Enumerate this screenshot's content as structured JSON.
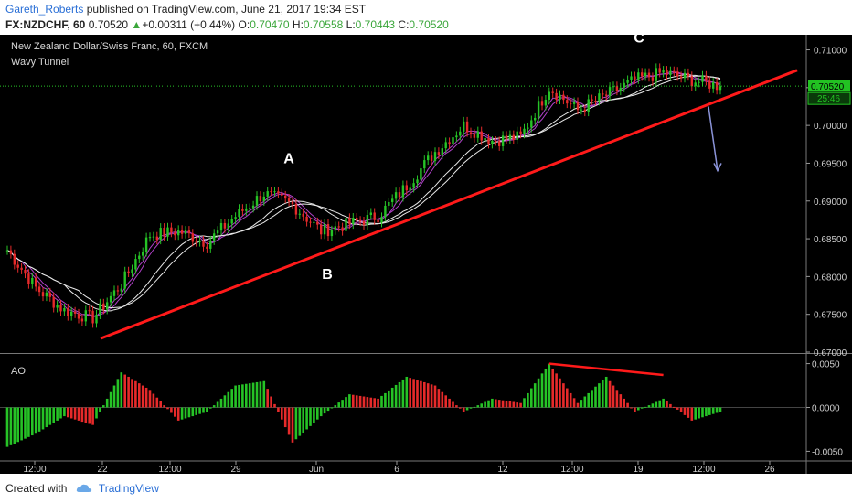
{
  "header": {
    "author": "Gareth_Roberts",
    "published": "published on TradingView.com, June 21, 2017 19:34 EST",
    "symbol": "FX:NZDCHF, 60",
    "last": "0.70520",
    "change": "+0.00311 (+0.44%)",
    "open_label": "O:",
    "open": "0.70470",
    "high_label": "H:",
    "high": "0.70558",
    "low_label": "L:",
    "low": "0.70443",
    "close_label": "C:",
    "close": "0.70520"
  },
  "footer": {
    "created_with": "Created with",
    "brand": "TradingView"
  },
  "colors": {
    "background": "#000000",
    "up": "#26c326",
    "down": "#e62a2a",
    "trend": "#ff1a1a",
    "tunnel_purple": "#b040c8",
    "tunnel_white": "#e8e8e8",
    "price_tag": "#22c222",
    "arrow": "#8a93d8"
  },
  "chart_data": [
    {
      "type": "line",
      "title": "New Zealand Dollar/Swiss Franc, 60, FXCM",
      "indicator": "Wavy Tunnel",
      "ylim": [
        0.67,
        0.712
      ],
      "y_ticks": [
        "0.71000",
        "0.70500",
        "0.70000",
        "0.69500",
        "0.69000",
        "0.68500",
        "0.68000",
        "0.67500",
        "0.67000"
      ],
      "x_ticks": [
        "12:00",
        "22",
        "12:00",
        "29",
        "Jun",
        "6",
        "12",
        "12:00",
        "19",
        "12:00",
        "26"
      ],
      "last_price_label": "0.70520",
      "countdown_label": "25:46",
      "annotations": [
        "A",
        "B",
        "C"
      ],
      "series": [
        {
          "name": "close",
          "x": [
            0,
            4,
            8,
            12,
            16,
            20,
            24,
            28,
            32,
            36,
            40,
            44,
            48,
            52,
            56,
            60,
            64,
            68,
            72,
            76,
            80,
            84,
            88,
            92,
            96,
            100
          ],
          "values": [
            0.6835,
            0.6785,
            0.6755,
            0.6745,
            0.679,
            0.6855,
            0.686,
            0.6845,
            0.688,
            0.691,
            0.6895,
            0.686,
            0.687,
            0.688,
            0.692,
            0.6965,
            0.7,
            0.698,
            0.6985,
            0.705,
            0.702,
            0.704,
            0.706,
            0.707,
            0.706,
            0.7052
          ]
        }
      ]
    },
    {
      "type": "bar",
      "title": "AO",
      "ylim": [
        -0.006,
        0.006
      ],
      "y_ticks": [
        "0.0050",
        "0.0000",
        "-0.0050"
      ],
      "series": [
        {
          "name": "AO",
          "x": [
            0,
            4,
            8,
            12,
            16,
            20,
            24,
            28,
            32,
            36,
            40,
            44,
            48,
            52,
            56,
            60,
            64,
            68,
            72,
            76,
            80,
            84,
            88,
            92,
            96,
            100
          ],
          "values": [
            -0.0045,
            -0.003,
            -0.001,
            -0.002,
            0.004,
            0.002,
            -0.0015,
            -0.0005,
            0.0025,
            0.003,
            -0.004,
            -0.001,
            0.0015,
            0.001,
            0.0035,
            0.0025,
            -0.0005,
            0.001,
            0.0005,
            0.005,
            0.0005,
            0.0035,
            -0.0005,
            0.001,
            -0.0015,
            -0.0005
          ]
        }
      ]
    }
  ]
}
